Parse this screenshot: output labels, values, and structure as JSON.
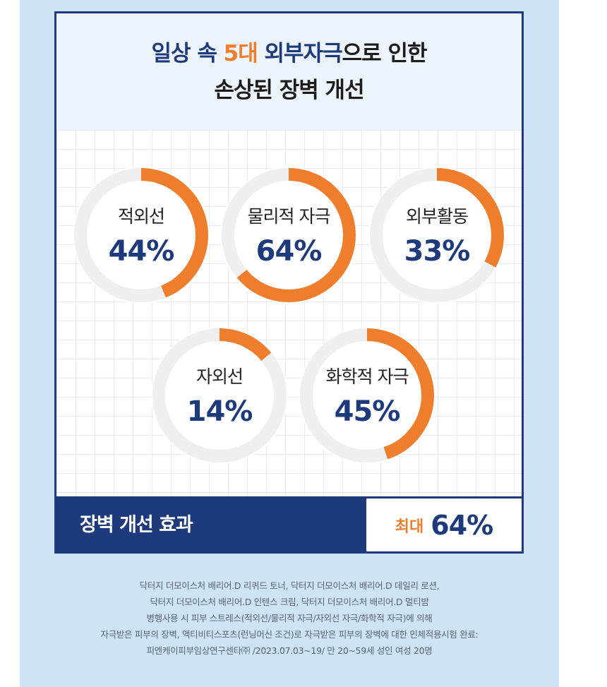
{
  "header": {
    "title_line1": {
      "pre": "일상 속 ",
      "highlight": "5대",
      "post_navy": " 외부자극",
      "post": "으로 인한"
    },
    "title_line2": "손상된 장벽 개선"
  },
  "chart_data": {
    "type": "donut",
    "unit": "%",
    "colors": {
      "fill": "#ee7d2c",
      "track": "#efefef",
      "value_text": "#1d3a7c",
      "label_text": "#222222"
    },
    "items": [
      {
        "label": "적외선",
        "value": 44,
        "display": "44%"
      },
      {
        "label": "물리적 자극",
        "value": 64,
        "display": "64%"
      },
      {
        "label": "외부활동",
        "value": 33,
        "display": "33%"
      },
      {
        "label": "자외선",
        "value": 14,
        "display": "14%"
      },
      {
        "label": "화학적 자극",
        "value": 45,
        "display": "45%"
      }
    ]
  },
  "effect": {
    "label": "장벽 개선 효과",
    "prefix": "최대",
    "value": "64%"
  },
  "footnote": [
    "닥터지 더모이스처 배리어.D 리퀴드 토너, 닥터지 더모이스처 배리어.D 데일리 로션,",
    "닥터지 더모이스처 배리어.D 인텐스 크림, 닥터지 더모이스처 배리어.D 멀티밤",
    "병행사용 시 피부 스트레스(적외선/물리적 자극/자외선 자극/화학적 자극)에 의해",
    "자극받은 피부의 장벽, 액티비티스포츠(런닝머신 조건)로 자극받은 피부의 장벽에 대한 인체적용시험 완료:",
    "피엔케이피부임상연구센타㈜ /2023.07.03~19/ 만 20~59세 성인 여성 20명"
  ]
}
